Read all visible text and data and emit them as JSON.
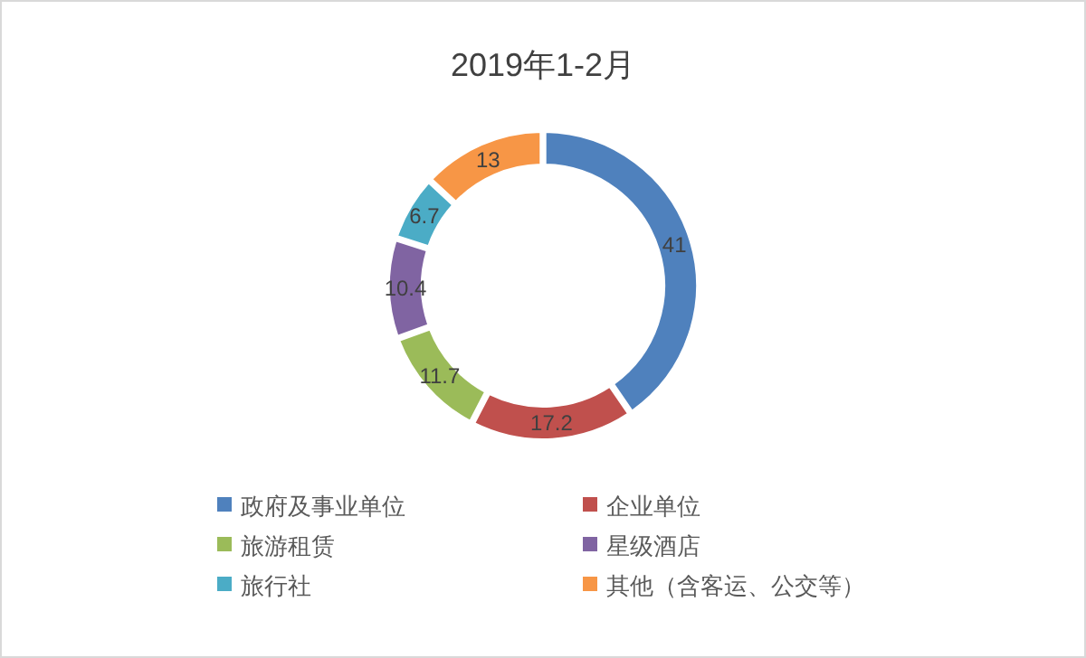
{
  "chart_data": {
    "type": "donut",
    "title": "2019年1-2月",
    "categories": [
      "政府及事业单位",
      "企业单位",
      "旅游租赁",
      "星级酒店",
      "旅行社",
      "其他（含客运、公交等）"
    ],
    "values": [
      41,
      17.2,
      11.7,
      10.4,
      6.7,
      13
    ],
    "colors": [
      "#4f81bd",
      "#c0504d",
      "#9bbb59",
      "#8064a2",
      "#4bacc6",
      "#f79646"
    ],
    "data_labels": true,
    "legend": "bottom"
  }
}
